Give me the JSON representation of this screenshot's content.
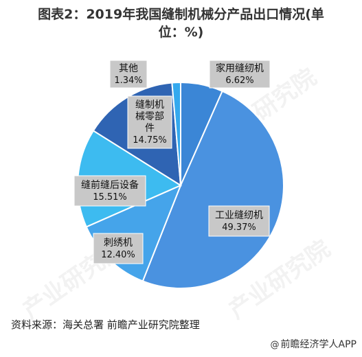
{
  "title_line1": "图表2：2019年我国缝制机械分产品出口情况(单",
  "title_line2": "位：%)",
  "chart_data": {
    "type": "pie",
    "unit": "%",
    "slices": [
      {
        "name": "家用缝纫机",
        "value": 6.62,
        "label": "6.62%",
        "color": "#3b86d6"
      },
      {
        "name": "工业缝纫机",
        "value": 49.37,
        "label": "49.37%",
        "color": "#4a92e0"
      },
      {
        "name": "刺绣机",
        "value": 12.4,
        "label": "12.40%",
        "color": "#45a4ea"
      },
      {
        "name": "缝前缝后设备",
        "value": 15.51,
        "label": "15.51%",
        "color": "#3dbbf0"
      },
      {
        "name": "缝制机械零部件",
        "name_lines": [
          "缝制机",
          "械零部",
          "件"
        ],
        "value": 14.75,
        "label": "14.75%",
        "color": "#2f64b3"
      },
      {
        "name": "其他",
        "value": 1.34,
        "label": "1.34%",
        "color": "#34a9ee"
      }
    ]
  },
  "source": "资料来源：海关总署 前瞻产业研究院整理",
  "credit": "前瞻经济学人APP",
  "watermark": "产业研究院"
}
